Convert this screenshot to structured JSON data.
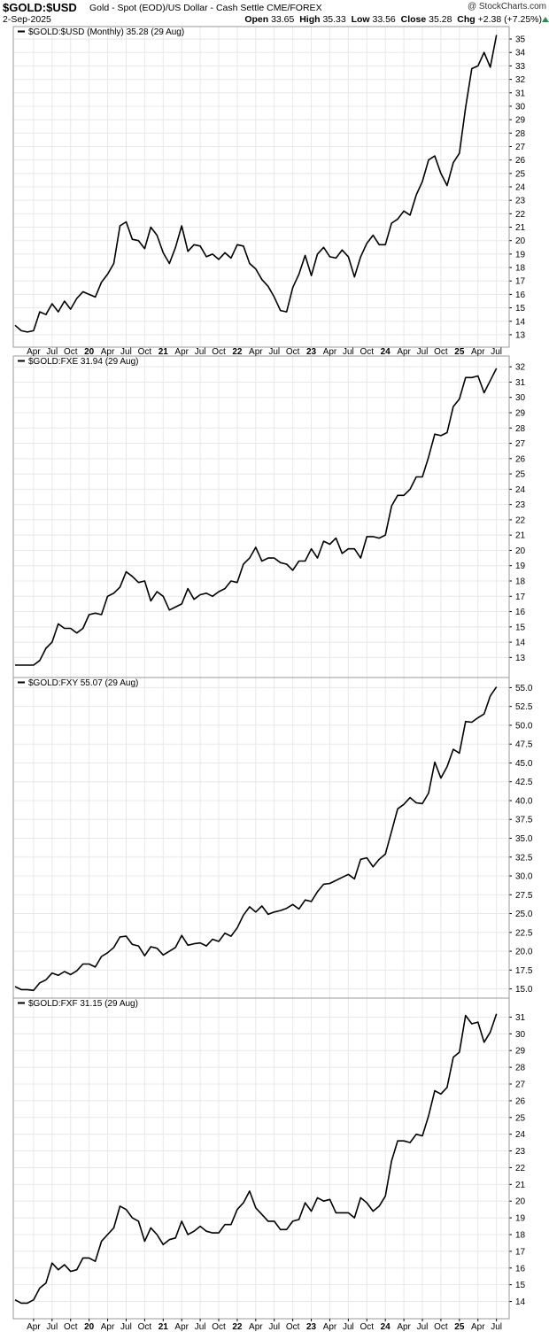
{
  "header": {
    "ticker": "$GOLD:$USD",
    "description": "Gold - Spot (EOD)/US Dollar - Cash Settle CME/FOREX",
    "date": "2-Sep-2025",
    "watermark": "@ StockCharts.com",
    "open_label": "Open",
    "open": "33.65",
    "high_label": "High",
    "high": "35.33",
    "low_label": "Low",
    "low": "33.56",
    "close_label": "Close",
    "close": "35.28",
    "chg_label": "Chg",
    "chg": "+2.38 (+7.25%)",
    "colors": {
      "up_arrow": "#2e8b57"
    }
  },
  "x_axis": {
    "labels": [
      {
        "text": "Apr",
        "d": 2019.25,
        "bold": false
      },
      {
        "text": "Jul",
        "d": 2019.5,
        "bold": false
      },
      {
        "text": "Oct",
        "d": 2019.75,
        "bold": false
      },
      {
        "text": "20",
        "d": 2020.0,
        "bold": true
      },
      {
        "text": "Apr",
        "d": 2020.25,
        "bold": false
      },
      {
        "text": "Jul",
        "d": 2020.5,
        "bold": false
      },
      {
        "text": "Oct",
        "d": 2020.75,
        "bold": false
      },
      {
        "text": "21",
        "d": 2021.0,
        "bold": true
      },
      {
        "text": "Apr",
        "d": 2021.25,
        "bold": false
      },
      {
        "text": "Jul",
        "d": 2021.5,
        "bold": false
      },
      {
        "text": "Oct",
        "d": 2021.75,
        "bold": false
      },
      {
        "text": "22",
        "d": 2022.0,
        "bold": true
      },
      {
        "text": "Apr",
        "d": 2022.25,
        "bold": false
      },
      {
        "text": "Jul",
        "d": 2022.5,
        "bold": false
      },
      {
        "text": "Oct",
        "d": 2022.75,
        "bold": false
      },
      {
        "text": "23",
        "d": 2023.0,
        "bold": true
      },
      {
        "text": "Apr",
        "d": 2023.25,
        "bold": false
      },
      {
        "text": "Jul",
        "d": 2023.5,
        "bold": false
      },
      {
        "text": "Oct",
        "d": 2023.75,
        "bold": false
      },
      {
        "text": "24",
        "d": 2024.0,
        "bold": true
      },
      {
        "text": "Apr",
        "d": 2024.25,
        "bold": false
      },
      {
        "text": "Jul",
        "d": 2024.5,
        "bold": false
      },
      {
        "text": "Oct",
        "d": 2024.75,
        "bold": false
      },
      {
        "text": "25",
        "d": 2025.0,
        "bold": true
      },
      {
        "text": "Apr",
        "d": 2025.25,
        "bold": false
      },
      {
        "text": "Jul",
        "d": 2025.5,
        "bold": false
      }
    ]
  },
  "chart_data": [
    {
      "type": "line",
      "legend": "$GOLD:$USD (Monthly) 35.28 (29 Aug)",
      "x_start": "Jan 2019",
      "x_step": "monthly",
      "ylim": [
        12.6,
        35.4
      ],
      "yticks": [
        13,
        14,
        15,
        16,
        17,
        18,
        19,
        20,
        21,
        22,
        23,
        24,
        25,
        26,
        27,
        28,
        29,
        30,
        31,
        32,
        33,
        34,
        35
      ],
      "values": [
        13.7,
        13.3,
        13.2,
        13.3,
        14.7,
        14.5,
        15.3,
        14.7,
        15.5,
        14.9,
        15.7,
        16.2,
        16.0,
        15.8,
        16.9,
        17.5,
        18.3,
        21.1,
        21.4,
        20.1,
        20.0,
        19.4,
        21.0,
        20.4,
        19.1,
        18.3,
        19.5,
        21.1,
        19.2,
        19.7,
        19.6,
        18.8,
        19.0,
        18.6,
        19.1,
        18.7,
        19.7,
        19.6,
        18.3,
        17.9,
        17.1,
        16.6,
        15.8,
        14.8,
        14.7,
        16.5,
        17.5,
        18.9,
        17.4,
        19.0,
        19.5,
        18.8,
        18.7,
        19.3,
        18.8,
        17.3,
        18.8,
        19.8,
        20.4,
        19.7,
        19.7,
        21.3,
        21.6,
        22.2,
        21.9,
        23.4,
        24.4,
        26.0,
        26.3,
        25.0,
        24.1,
        25.8,
        26.5,
        29.9,
        32.8,
        33.0,
        34.0,
        32.9,
        35.3
      ]
    },
    {
      "type": "line",
      "legend": "$GOLD:FXE 31.94 (29 Aug)",
      "x_start": "Jan 2019",
      "x_step": "monthly",
      "ylim": [
        12.5,
        32.3
      ],
      "yticks": [
        13,
        14,
        15,
        16,
        17,
        18,
        19,
        20,
        21,
        22,
        23,
        24,
        25,
        26,
        27,
        28,
        29,
        30,
        31,
        32
      ],
      "values": [
        12.5,
        12.5,
        12.5,
        12.5,
        12.8,
        13.6,
        14.0,
        15.2,
        14.9,
        14.9,
        14.6,
        14.9,
        15.8,
        15.9,
        15.8,
        17.0,
        17.2,
        17.6,
        18.6,
        18.3,
        17.9,
        18.0,
        16.7,
        17.3,
        17.0,
        16.1,
        16.3,
        16.5,
        17.5,
        16.8,
        17.1,
        17.2,
        17.0,
        17.3,
        17.5,
        18.0,
        17.9,
        19.1,
        19.5,
        20.2,
        19.3,
        19.5,
        19.5,
        19.2,
        19.1,
        18.7,
        19.3,
        19.3,
        20.1,
        19.5,
        20.6,
        20.4,
        20.8,
        19.8,
        20.1,
        20.1,
        19.5,
        20.9,
        20.9,
        20.8,
        21.0,
        22.9,
        23.6,
        23.6,
        24.0,
        24.8,
        24.8,
        26.1,
        27.6,
        27.5,
        27.7,
        29.4,
        29.9,
        31.3,
        31.3,
        31.4,
        30.3,
        31.1,
        31.9
      ]
    },
    {
      "type": "line",
      "legend": "$GOLD:FXY 55.07 (29 Aug)",
      "x_start": "Jan 2019",
      "x_step": "monthly",
      "ylim": [
        14.6,
        55.4
      ],
      "yticks": [
        15.0,
        17.5,
        20.0,
        22.5,
        25.0,
        27.5,
        30.0,
        32.5,
        35.0,
        37.5,
        40.0,
        42.5,
        45.0,
        47.5,
        50.0,
        52.5,
        55.0
      ],
      "values": [
        15.3,
        14.9,
        14.9,
        14.8,
        15.8,
        16.2,
        17.1,
        16.8,
        17.3,
        16.9,
        17.4,
        18.3,
        18.3,
        17.9,
        19.3,
        19.8,
        20.5,
        21.9,
        22.0,
        20.9,
        20.7,
        19.4,
        20.6,
        20.4,
        19.5,
        20.0,
        20.5,
        22.1,
        20.8,
        21.0,
        21.1,
        20.7,
        21.6,
        21.3,
        22.4,
        22.0,
        23.1,
        24.8,
        25.9,
        25.2,
        26.0,
        24.9,
        25.2,
        25.4,
        25.7,
        26.2,
        25.6,
        26.8,
        26.6,
        27.9,
        28.9,
        29.0,
        29.4,
        29.8,
        30.2,
        29.6,
        32.2,
        32.4,
        31.2,
        32.2,
        32.9,
        35.9,
        38.9,
        39.5,
        40.4,
        39.7,
        39.6,
        41.0,
        45.1,
        43.0,
        44.5,
        46.8,
        46.3,
        50.5,
        50.4,
        51.0,
        51.5,
        53.9,
        55.1
      ]
    },
    {
      "type": "line",
      "legend": "$GOLD:FXF 31.15 (29 Aug)",
      "x_start": "Jan 2019",
      "x_step": "monthly",
      "ylim": [
        13.5,
        31.5
      ],
      "yticks": [
        14,
        15,
        16,
        17,
        18,
        19,
        20,
        21,
        22,
        23,
        24,
        25,
        26,
        27,
        28,
        29,
        30,
        31
      ],
      "values": [
        14.1,
        13.9,
        13.9,
        14.1,
        14.8,
        15.1,
        16.3,
        15.9,
        16.2,
        15.8,
        15.9,
        16.6,
        16.6,
        16.4,
        17.6,
        18.0,
        18.4,
        19.7,
        19.5,
        19.0,
        18.8,
        17.6,
        18.4,
        18.0,
        17.4,
        17.7,
        17.8,
        18.8,
        18.0,
        18.2,
        18.5,
        18.2,
        18.1,
        18.1,
        18.6,
        18.6,
        19.5,
        19.9,
        20.6,
        19.6,
        19.2,
        18.8,
        18.8,
        18.3,
        18.3,
        18.8,
        18.9,
        19.9,
        19.4,
        20.2,
        20.0,
        20.1,
        19.3,
        19.3,
        19.3,
        19.0,
        20.2,
        19.9,
        19.4,
        19.7,
        20.3,
        22.4,
        23.6,
        23.6,
        23.5,
        24.0,
        23.9,
        25.1,
        26.6,
        26.4,
        26.8,
        28.6,
        28.9,
        31.1,
        30.6,
        30.7,
        29.5,
        30.1,
        31.2
      ]
    }
  ]
}
